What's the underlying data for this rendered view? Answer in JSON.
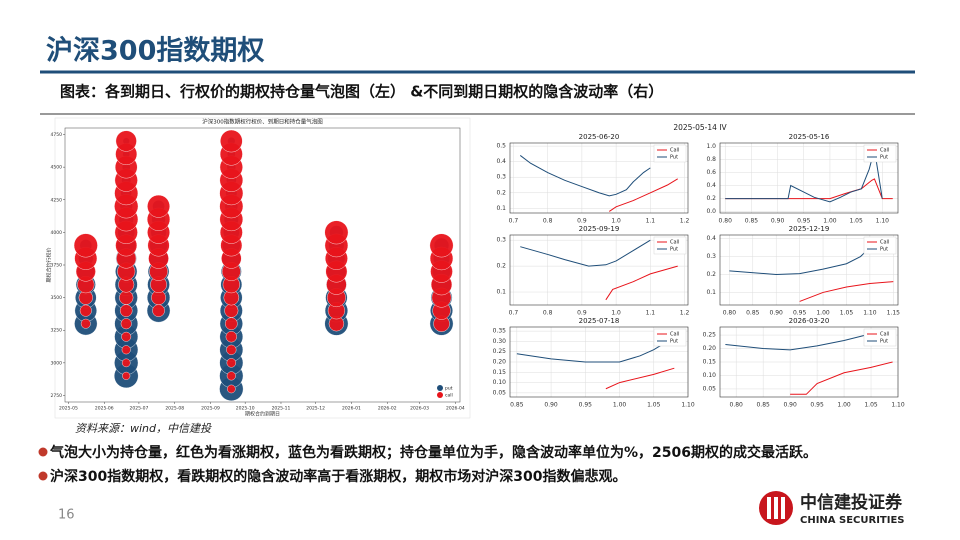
{
  "header": {
    "title": "沪深300指数期权",
    "subtitle": "图表：各到期日、行权价的期权持仓量气泡图（左） &不同到期日期权的隐含波动率（右）"
  },
  "iv_title": "2025-05-14 IV",
  "source": "资料来源：wind，中信建投",
  "bullets": [
    "气泡大小为持仓量，红色为看涨期权，蓝色为看跌期权；持仓量单位为手，隐含波动率单位为%，2506期权的成交最活跃。",
    "沪深300指数期权，看跌期权的隐含波动率高于看涨期权，期权市场对沪深300指数偏悲观。"
  ],
  "page_number": "16",
  "logo": {
    "name": "中信建投证券",
    "english": "CHINA SECURITIES"
  },
  "chart_data": [
    {
      "type": "bubble",
      "title": "沪深300指数期权行权价、到期日和持仓量气泡图",
      "x_label": "期权合约到期日",
      "y_label": "期权合约行权价",
      "legend": "lower right",
      "xlim": [
        "2025-04-28",
        "2026-04-05"
      ],
      "xticks": [
        "2025-05",
        "2025-06",
        "2025-07",
        "2025-08",
        "2025-09",
        "2025-10",
        "2025-11",
        "2025-12",
        "2026-01",
        "2026-02",
        "2026-03",
        "2026-04"
      ],
      "ylim": [
        2700,
        4800
      ],
      "yticks": [
        2750,
        3000,
        3250,
        3500,
        3750,
        4000,
        4250,
        4500,
        4750
      ],
      "series": [
        {
          "name": "put",
          "color": "#1f4e79",
          "x": [
            "2025-05-16",
            "2025-05-16",
            "2025-05-16",
            "2025-05-16",
            "2025-05-16",
            "2025-05-16",
            "2025-05-16",
            "2025-06-20",
            "2025-06-20",
            "2025-06-20",
            "2025-06-20",
            "2025-06-20",
            "2025-06-20",
            "2025-06-20",
            "2025-06-20",
            "2025-06-20",
            "2025-06-20",
            "2025-06-20",
            "2025-06-20",
            "2025-06-20",
            "2025-06-20",
            "2025-06-20",
            "2025-06-20",
            "2025-06-20",
            "2025-06-20",
            "2025-06-20",
            "2025-07-18",
            "2025-07-18",
            "2025-07-18",
            "2025-07-18",
            "2025-07-18",
            "2025-07-18",
            "2025-07-18",
            "2025-07-18",
            "2025-07-18",
            "2025-09-19",
            "2025-09-19",
            "2025-09-19",
            "2025-09-19",
            "2025-09-19",
            "2025-09-19",
            "2025-09-19",
            "2025-09-19",
            "2025-09-19",
            "2025-09-19",
            "2025-09-19",
            "2025-09-19",
            "2025-09-19",
            "2025-09-19",
            "2025-09-19",
            "2025-09-19",
            "2025-09-19",
            "2025-09-19",
            "2025-09-19",
            "2025-09-19",
            "2025-12-19",
            "2025-12-19",
            "2025-12-19",
            "2025-12-19",
            "2025-12-19",
            "2025-12-19",
            "2025-12-19",
            "2025-12-19",
            "2026-03-20",
            "2026-03-20",
            "2026-03-20",
            "2026-03-20",
            "2026-03-20",
            "2026-03-20",
            "2026-03-20"
          ],
          "values": [
            3300,
            3400,
            3500,
            3600,
            3700,
            3800,
            3900,
            2900,
            3000,
            3100,
            3200,
            3300,
            3400,
            3500,
            3600,
            3700,
            3800,
            3900,
            4000,
            4100,
            4200,
            4300,
            4400,
            4500,
            4600,
            4700,
            3400,
            3500,
            3600,
            3700,
            3800,
            3900,
            4000,
            4100,
            4200,
            2800,
            2900,
            3000,
            3100,
            3200,
            3300,
            3400,
            3500,
            3600,
            3700,
            3800,
            3900,
            4000,
            4100,
            4200,
            4300,
            4400,
            4500,
            4600,
            4700,
            3300,
            3400,
            3500,
            3600,
            3700,
            3800,
            3900,
            4000,
            3300,
            3400,
            3500,
            3600,
            3700,
            3800,
            3900
          ],
          "sizes": [
            7000,
            6500,
            6000,
            5200,
            4200,
            3000,
            2000,
            7800,
            7600,
            7500,
            7400,
            7300,
            7200,
            7000,
            6800,
            6400,
            5800,
            5000,
            4000,
            3000,
            2200,
            1600,
            1200,
            900,
            700,
            600,
            7200,
            7000,
            6600,
            6000,
            5200,
            4300,
            3400,
            2600,
            2000,
            7600,
            7500,
            7400,
            7300,
            7200,
            7000,
            6800,
            6500,
            6100,
            5600,
            5000,
            4300,
            3600,
            2900,
            2300,
            1800,
            1400,
            1100,
            900,
            800,
            7400,
            7000,
            6400,
            5700,
            4900,
            4100,
            3300,
            2600,
            7300,
            6800,
            6100,
            5300,
            4500,
            3700,
            3000
          ]
        },
        {
          "name": "call",
          "color": "#e8141b",
          "x": [
            "2025-05-16",
            "2025-05-16",
            "2025-05-16",
            "2025-05-16",
            "2025-05-16",
            "2025-05-16",
            "2025-05-16",
            "2025-06-20",
            "2025-06-20",
            "2025-06-20",
            "2025-06-20",
            "2025-06-20",
            "2025-06-20",
            "2025-06-20",
            "2025-06-20",
            "2025-06-20",
            "2025-06-20",
            "2025-06-20",
            "2025-06-20",
            "2025-06-20",
            "2025-06-20",
            "2025-06-20",
            "2025-06-20",
            "2025-06-20",
            "2025-06-20",
            "2025-06-20",
            "2025-07-18",
            "2025-07-18",
            "2025-07-18",
            "2025-07-18",
            "2025-07-18",
            "2025-07-18",
            "2025-07-18",
            "2025-07-18",
            "2025-07-18",
            "2025-09-19",
            "2025-09-19",
            "2025-09-19",
            "2025-09-19",
            "2025-09-19",
            "2025-09-19",
            "2025-09-19",
            "2025-09-19",
            "2025-09-19",
            "2025-09-19",
            "2025-09-19",
            "2025-09-19",
            "2025-09-19",
            "2025-09-19",
            "2025-09-19",
            "2025-09-19",
            "2025-09-19",
            "2025-09-19",
            "2025-09-19",
            "2025-09-19",
            "2025-12-19",
            "2025-12-19",
            "2025-12-19",
            "2025-12-19",
            "2025-12-19",
            "2025-12-19",
            "2025-12-19",
            "2025-12-19",
            "2026-03-20",
            "2026-03-20",
            "2026-03-20",
            "2026-03-20",
            "2026-03-20",
            "2026-03-20",
            "2026-03-20"
          ],
          "values": [
            3300,
            3400,
            3500,
            3600,
            3700,
            3800,
            3900,
            2900,
            3000,
            3100,
            3200,
            3300,
            3400,
            3500,
            3600,
            3700,
            3800,
            3900,
            4000,
            4100,
            4200,
            4300,
            4400,
            4500,
            4600,
            4700,
            3400,
            3500,
            3600,
            3700,
            3800,
            3900,
            4000,
            4100,
            4200,
            2800,
            2900,
            3000,
            3100,
            3200,
            3300,
            3400,
            3500,
            3600,
            3700,
            3800,
            3900,
            4000,
            4100,
            4200,
            4300,
            4400,
            4500,
            4600,
            4700,
            3300,
            3400,
            3500,
            3600,
            3700,
            3800,
            3900,
            4000,
            3300,
            3400,
            3500,
            3600,
            3700,
            3800,
            3900
          ],
          "sizes": [
            1200,
            1800,
            2600,
            3800,
            5200,
            6800,
            7500,
            800,
            900,
            1000,
            1200,
            1500,
            2000,
            2600,
            3300,
            4200,
            5200,
            6200,
            7000,
            7500,
            7600,
            7400,
            7000,
            6600,
            6200,
            5800,
            2000,
            2800,
            3600,
            4500,
            5500,
            6300,
            6800,
            7000,
            6800,
            900,
            1000,
            1100,
            1300,
            1600,
            2000,
            2500,
            3100,
            3800,
            4600,
            5400,
            6200,
            6800,
            7200,
            7400,
            7400,
            7200,
            7000,
            6800,
            6600,
            3000,
            3800,
            4600,
            5400,
            6200,
            6800,
            7200,
            7400,
            3500,
            4300,
            5100,
            5900,
            6600,
            7100,
            7400
          ]
        }
      ]
    },
    {
      "type": "line",
      "title": "2025-06-20",
      "grid": true,
      "legend": "upper right",
      "xlim": [
        0.69,
        1.21
      ],
      "xticks": [
        0.7,
        0.8,
        0.9,
        {
          "value": 1.0,
          "label": "1.0"
        },
        1.1,
        1.2
      ],
      "ylim": [
        0.07,
        0.52
      ],
      "yticks": [
        0.1,
        0.2,
        0.3,
        0.4,
        0.5
      ],
      "series": [
        {
          "name": "Call",
          "color": "#e8141b",
          "x": [
            0.98,
            1.0,
            1.05,
            1.1,
            1.15,
            1.18
          ],
          "values": [
            0.08,
            0.11,
            0.15,
            0.2,
            0.25,
            0.29
          ]
        },
        {
          "name": "Put",
          "color": "#1f4e79",
          "x": [
            0.72,
            0.75,
            0.8,
            0.85,
            0.9,
            0.95,
            0.98,
            1.0,
            1.03,
            1.05,
            1.08,
            1.1
          ],
          "values": [
            0.44,
            0.39,
            0.33,
            0.28,
            0.24,
            0.2,
            0.18,
            0.19,
            0.22,
            0.27,
            0.33,
            0.36
          ]
        }
      ]
    },
    {
      "type": "line",
      "title": "2025-05-16",
      "grid": true,
      "legend": "upper right",
      "xlim": [
        0.79,
        1.13
      ],
      "xticks": [
        {
          "value": 0.8,
          "label": "0.80"
        },
        0.85,
        {
          "value": 0.9,
          "label": "0.90"
        },
        0.95,
        {
          "value": 1.0,
          "label": "1.00"
        },
        1.05,
        {
          "value": 1.1,
          "label": "1.10"
        }
      ],
      "ylim": [
        -0.02,
        1.05
      ],
      "yticks": [
        {
          "value": 0,
          "label": "0.0"
        },
        0.2,
        0.4,
        0.6,
        0.8,
        {
          "value": 1,
          "label": "1.0"
        }
      ],
      "series": [
        {
          "name": "Call",
          "color": "#e8141b",
          "x": [
            0.8,
            0.9,
            0.97,
            1.0,
            1.03,
            1.06,
            1.08,
            1.085,
            1.1,
            1.12
          ],
          "values": [
            0.2,
            0.2,
            0.2,
            0.2,
            0.28,
            0.35,
            0.48,
            0.5,
            0.2,
            0.2
          ]
        },
        {
          "name": "Put",
          "color": "#1f4e79",
          "x": [
            0.8,
            0.92,
            0.925,
            0.95,
            0.97,
            1.0,
            1.02,
            1.04,
            1.06,
            1.075,
            1.085,
            1.1
          ],
          "values": [
            0.2,
            0.2,
            0.4,
            0.3,
            0.22,
            0.15,
            0.22,
            0.3,
            0.35,
            0.65,
            0.95,
            0.2
          ]
        }
      ]
    },
    {
      "type": "line",
      "title": "2025-09-19",
      "grid": true,
      "legend": "upper right",
      "xlim": [
        0.69,
        1.21
      ],
      "xticks": [
        0.7,
        0.8,
        0.9,
        {
          "value": 1.0,
          "label": "1.0"
        },
        1.1,
        1.2
      ],
      "ylim": [
        0.05,
        0.32
      ],
      "yticks": [
        0.1,
        0.2,
        0.3
      ],
      "series": [
        {
          "name": "Call",
          "color": "#e8141b",
          "x": [
            0.97,
            0.99,
            1.05,
            1.1,
            1.18
          ],
          "values": [
            0.07,
            0.11,
            0.14,
            0.17,
            0.2
          ]
        },
        {
          "name": "Put",
          "color": "#1f4e79",
          "x": [
            0.72,
            0.8,
            0.85,
            0.92,
            0.97,
            1.0,
            1.05,
            1.1
          ],
          "values": [
            0.275,
            0.245,
            0.225,
            0.2,
            0.205,
            0.22,
            0.26,
            0.3
          ]
        }
      ]
    },
    {
      "type": "line",
      "title": "2025-12-19",
      "grid": true,
      "legend": "upper right",
      "xlim": [
        0.78,
        1.16
      ],
      "xticks": [
        {
          "value": 0.8,
          "label": "0.80"
        },
        0.85,
        {
          "value": 0.9,
          "label": "0.90"
        },
        0.95,
        {
          "value": 1.0,
          "label": "1.00"
        },
        1.05,
        {
          "value": 1.1,
          "label": "1.10"
        },
        1.15
      ],
      "ylim": [
        0.03,
        0.42
      ],
      "yticks": [
        0.1,
        0.2,
        0.3,
        0.4
      ],
      "series": [
        {
          "name": "Call",
          "color": "#e8141b",
          "x": [
            0.95,
            1.0,
            1.05,
            1.1,
            1.15
          ],
          "values": [
            0.05,
            0.1,
            0.13,
            0.15,
            0.16
          ]
        },
        {
          "name": "Put",
          "color": "#1f4e79",
          "x": [
            0.8,
            0.9,
            0.95,
            1.0,
            1.05,
            1.08,
            1.1
          ],
          "values": [
            0.22,
            0.2,
            0.205,
            0.23,
            0.26,
            0.3,
            0.35
          ]
        }
      ]
    },
    {
      "type": "line",
      "title": "2025-07-18",
      "grid": true,
      "legend": "upper right",
      "xlim": [
        0.84,
        1.1
      ],
      "xticks": [
        0.85,
        {
          "value": 0.9,
          "label": "0.90"
        },
        0.95,
        {
          "value": 1.0,
          "label": "1.00"
        },
        1.05,
        {
          "value": 1.1,
          "label": "1.10"
        }
      ],
      "ylim": [
        0.03,
        0.37
      ],
      "yticks": [
        0.05,
        {
          "value": 0.1,
          "label": "0.10"
        },
        0.15,
        {
          "value": 0.2,
          "label": "0.20"
        },
        0.25,
        {
          "value": 0.3,
          "label": "0.30"
        },
        0.35
      ],
      "series": [
        {
          "name": "Call",
          "color": "#e8141b",
          "x": [
            0.98,
            1.0,
            1.05,
            1.08
          ],
          "values": [
            0.07,
            0.1,
            0.14,
            0.17
          ]
        },
        {
          "name": "Put",
          "color": "#1f4e79",
          "x": [
            0.85,
            0.9,
            0.95,
            1.0,
            1.03,
            1.05,
            1.06
          ],
          "values": [
            0.24,
            0.215,
            0.2,
            0.2,
            0.23,
            0.26,
            0.28
          ]
        }
      ]
    },
    {
      "type": "line",
      "title": "2026-03-20",
      "grid": true,
      "legend": "upper right",
      "xlim": [
        0.77,
        1.1
      ],
      "xticks": [
        {
          "value": 0.8,
          "label": "0.80"
        },
        0.85,
        {
          "value": 0.9,
          "label": "0.90"
        },
        0.95,
        {
          "value": 1.0,
          "label": "1.00"
        },
        1.05,
        {
          "value": 1.1,
          "label": "1.10"
        }
      ],
      "ylim": [
        0.02,
        0.28
      ],
      "yticks": [
        0.05,
        {
          "value": 0.1,
          "label": "0.10"
        },
        0.15,
        {
          "value": 0.2,
          "label": "0.20"
        },
        0.25
      ],
      "series": [
        {
          "name": "Call",
          "color": "#e8141b",
          "x": [
            0.9,
            0.93,
            0.95,
            1.0,
            1.05,
            1.09
          ],
          "values": [
            0.03,
            0.03,
            0.07,
            0.11,
            0.13,
            0.15
          ]
        },
        {
          "name": "Put",
          "color": "#1f4e79",
          "x": [
            0.78,
            0.85,
            0.9,
            0.95,
            1.0,
            1.05,
            1.08
          ],
          "values": [
            0.215,
            0.2,
            0.195,
            0.21,
            0.23,
            0.255,
            0.265
          ]
        }
      ]
    }
  ]
}
